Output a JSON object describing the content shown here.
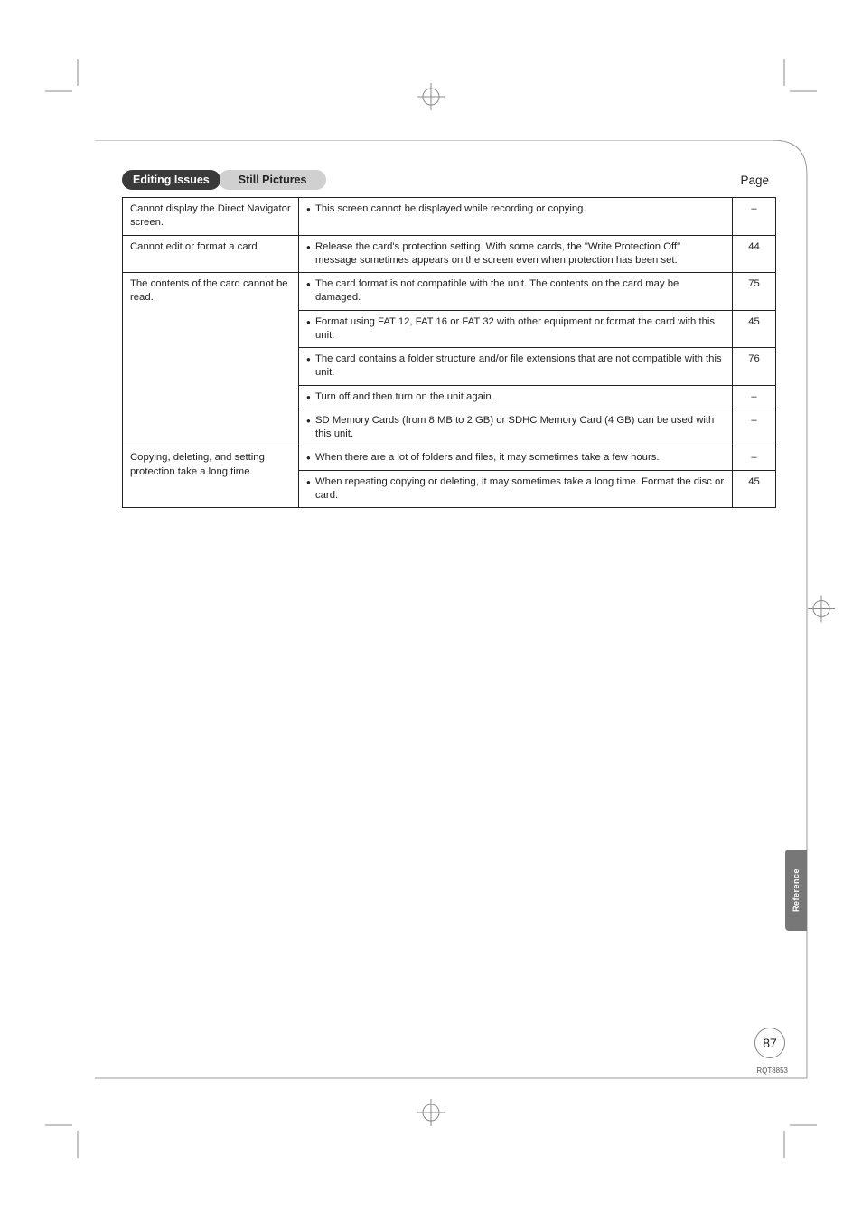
{
  "header": {
    "badge_dark": "Editing Issues",
    "badge_light": "Still Pictures",
    "page_label": "Page"
  },
  "table": {
    "rows": [
      {
        "issue": "Cannot display the Direct Navigator screen.",
        "cells": [
          {
            "desc": "This screen cannot be displayed while recording or copying.",
            "page": "–"
          }
        ]
      },
      {
        "issue": "Cannot edit or format a card.",
        "cells": [
          {
            "desc": "Release the card's protection setting. With some cards, the \"Write Protection Off\" message sometimes appears on the screen even when protection has been set.",
            "page": "44"
          }
        ]
      },
      {
        "issue": "The contents of the card cannot be read.",
        "cells": [
          {
            "desc": "The card format is not compatible with the unit. The contents on the card may be damaged.",
            "page": "75"
          },
          {
            "desc": "Format using FAT 12, FAT 16 or FAT 32 with other equipment or format the card with this unit.",
            "page": "45"
          },
          {
            "desc": "The card contains a folder structure and/or file extensions that are not compatible with this unit.",
            "page": "76"
          },
          {
            "desc": "Turn off and then turn on the unit again.",
            "page": "–"
          },
          {
            "desc": "SD Memory Cards (from 8 MB to 2 GB) or SDHC Memory Card (4 GB) can be used with this unit.",
            "page": "–"
          }
        ]
      },
      {
        "issue": "Copying, deleting, and setting protection take a long time.",
        "cells": [
          {
            "desc": "When there are a lot of folders and files, it may sometimes take a few hours.",
            "page": "–"
          },
          {
            "desc": "When repeating copying or deleting, it may sometimes take a long time. Format the disc or card.",
            "page": "45"
          }
        ]
      }
    ]
  },
  "side_tab": "Reference",
  "page_number": "87",
  "doc_id": "RQT8853",
  "colors": {
    "badge_dark_bg": "#3a3a3a",
    "badge_light_bg": "#d0d0d0",
    "text": "#222222",
    "border": "#222222",
    "side_tab_bg": "#777777",
    "page_bg": "#ffffff"
  }
}
